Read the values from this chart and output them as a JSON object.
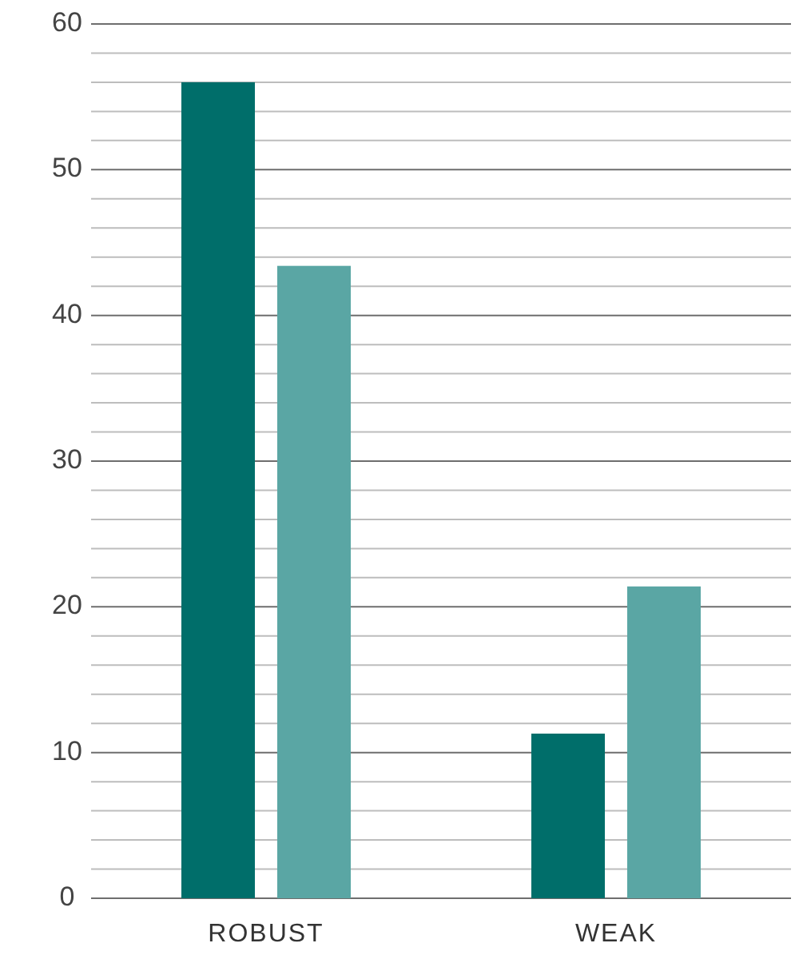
{
  "chart_data": {
    "type": "bar",
    "categories": [
      "ROBUST",
      "WEAK"
    ],
    "series": [
      {
        "color": "#006e6a",
        "values": [
          56,
          11.3
        ]
      },
      {
        "color": "#5aa6a4",
        "values": [
          43.4,
          21.4
        ]
      }
    ],
    "ylim": [
      0,
      60
    ],
    "yticks": [
      0,
      {
        "value": 2,
        "label": null
      },
      {
        "value": 4,
        "label": null
      },
      {
        "value": 6,
        "label": null
      },
      {
        "value": 8,
        "label": null
      },
      10,
      {
        "value": 12,
        "label": null
      },
      {
        "value": 14,
        "label": null
      },
      {
        "value": 16,
        "label": null
      },
      {
        "value": 18,
        "label": null
      },
      20,
      {
        "value": 22,
        "label": null
      },
      {
        "value": 24,
        "label": null
      },
      {
        "value": 26,
        "label": null
      },
      {
        "value": 28,
        "label": null
      },
      30,
      {
        "value": 32,
        "label": null
      },
      {
        "value": 34,
        "label": null
      },
      {
        "value": 36,
        "label": null
      },
      {
        "value": 38,
        "label": null
      },
      40,
      {
        "value": 42,
        "label": null
      },
      {
        "value": 44,
        "label": null
      },
      {
        "value": 46,
        "label": null
      },
      {
        "value": 48,
        "label": null
      },
      50,
      {
        "value": 52,
        "label": null
      },
      {
        "value": 54,
        "label": null
      },
      {
        "value": 56,
        "label": null
      },
      {
        "value": 58,
        "label": null
      },
      60
    ],
    "grid": "y"
  }
}
